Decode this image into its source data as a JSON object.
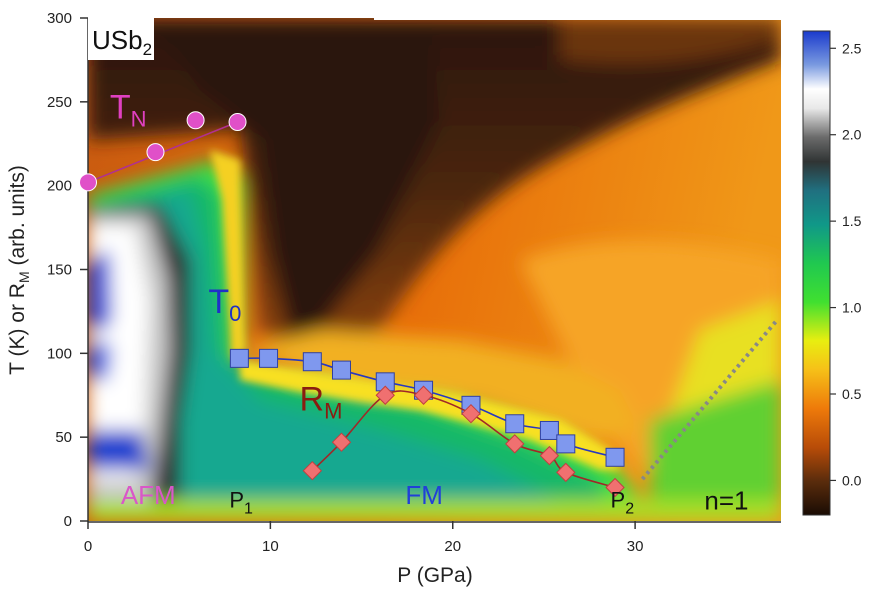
{
  "chart_data": {
    "type": "scatter",
    "xlabel": "P (GPa)",
    "ylabel_parts": [
      "T (K) or R",
      "M",
      " (arb. units)"
    ],
    "xlim": [
      0,
      38
    ],
    "ylim": [
      0,
      300
    ],
    "x_ticks": [
      0,
      10,
      20,
      30
    ],
    "y_ticks": [
      0,
      50,
      100,
      150,
      200,
      250,
      300
    ],
    "grid": false,
    "sample_label": {
      "base": "USb",
      "sub": "2"
    },
    "series": [
      {
        "label_base": "T",
        "label_sub": "N",
        "color": "#e050c8",
        "marker": "circle",
        "label_at": [
          1.2,
          240
        ],
        "points": [
          [
            0,
            202
          ],
          [
            3.7,
            220
          ],
          [
            5.9,
            239
          ],
          [
            8.2,
            238
          ]
        ]
      },
      {
        "label_base": "T",
        "label_sub": "0",
        "color": "#7f98ee",
        "marker": "square",
        "label_at": [
          6.6,
          124
        ],
        "points": [
          [
            8.3,
            97
          ],
          [
            9.9,
            97
          ],
          [
            12.3,
            95
          ],
          [
            13.9,
            90
          ],
          [
            16.3,
            83
          ],
          [
            18.4,
            78
          ],
          [
            21.0,
            69
          ],
          [
            23.4,
            58
          ],
          [
            25.3,
            54
          ],
          [
            26.2,
            46
          ],
          [
            28.9,
            38
          ]
        ]
      },
      {
        "label_base": "R",
        "label_sub": "M",
        "color": "#f07070",
        "marker": "diamond",
        "label_at": [
          11.6,
          66
        ],
        "points": [
          [
            12.3,
            30
          ],
          [
            13.9,
            47
          ],
          [
            16.3,
            75
          ],
          [
            18.4,
            75
          ],
          [
            21.0,
            64
          ],
          [
            23.4,
            46
          ],
          [
            25.3,
            39
          ],
          [
            26.2,
            29
          ],
          [
            28.9,
            20
          ]
        ]
      }
    ],
    "region_labels": [
      {
        "text": "AFM",
        "x": 1.8,
        "y": 10,
        "color": "#d957c8"
      },
      {
        "text": "FM",
        "x": 17.4,
        "y": 10,
        "color": "#2040d8"
      },
      {
        "text": "n=1",
        "x": 33.8,
        "y": 7,
        "color": "#111111"
      }
    ],
    "pressure_marks": [
      {
        "base": "P",
        "sub": "1",
        "x": 8.3,
        "y": 8
      },
      {
        "base": "P",
        "sub": "2",
        "x": 29.2,
        "y": 8
      }
    ],
    "dotted_line": [
      [
        30.4,
        25
      ],
      [
        37.8,
        120
      ]
    ],
    "colorbar": {
      "range": [
        -0.2,
        2.6
      ],
      "ticks": [
        0.0,
        0.5,
        1.0,
        1.5,
        2.0,
        2.5
      ],
      "tick_labels": [
        "0.0",
        "0.5",
        "1.0",
        "1.5",
        "2.0",
        "2.5"
      ]
    }
  }
}
